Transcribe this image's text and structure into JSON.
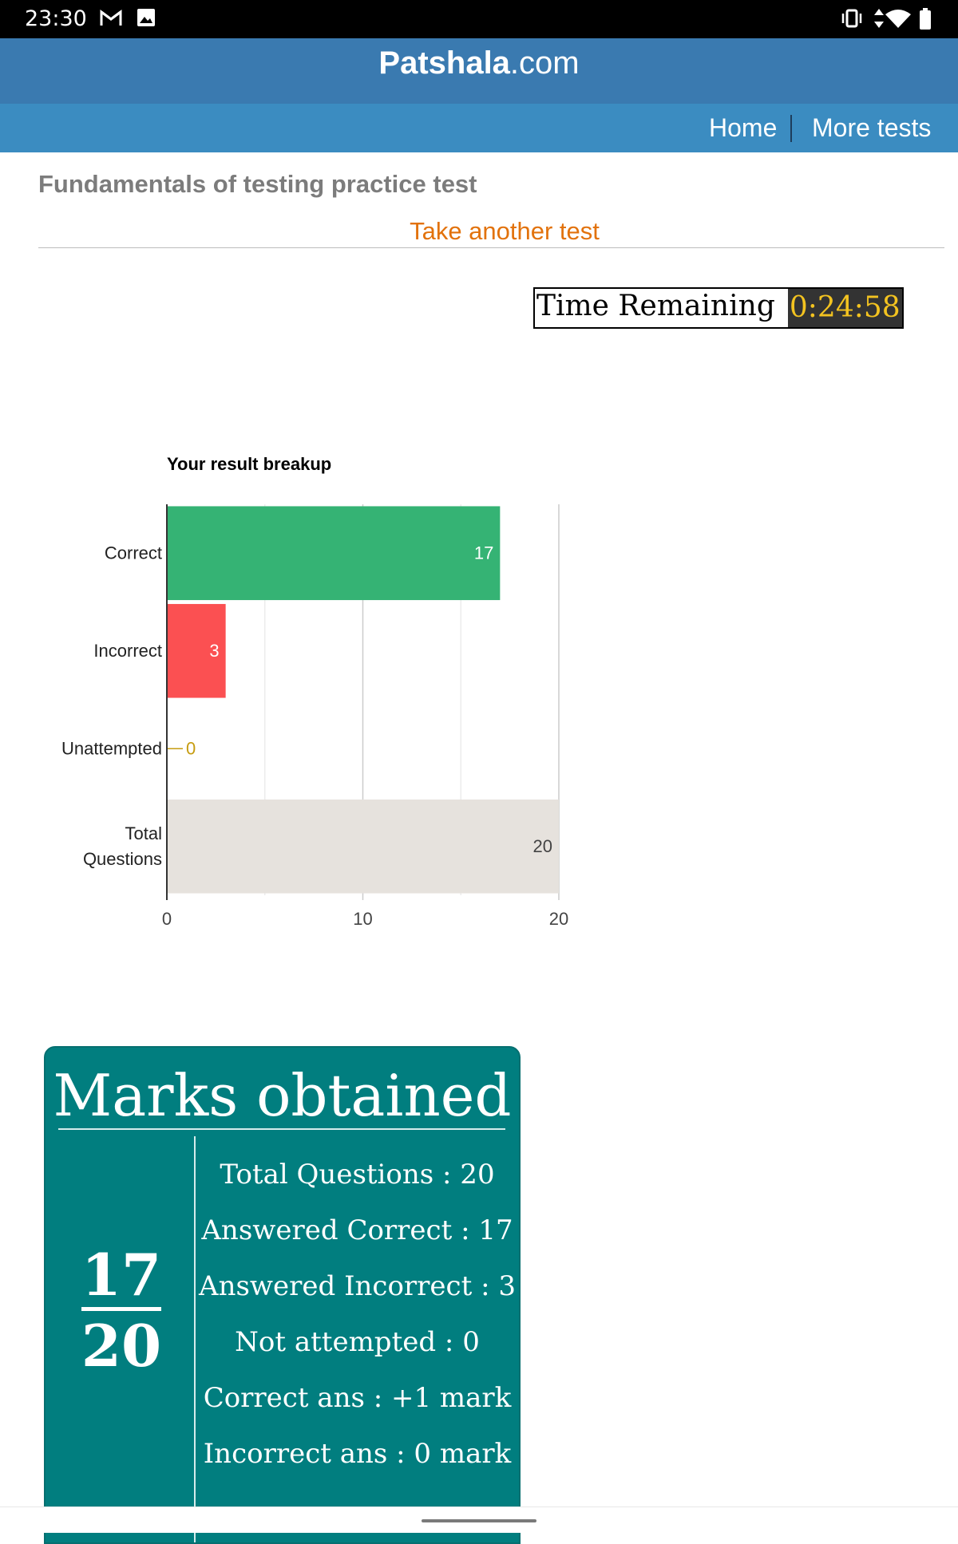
{
  "status_bar": {
    "time": "23:30",
    "icons": [
      "gmail-icon",
      "image-icon",
      "vibrate-icon",
      "data-arrows-icon",
      "wifi-icon",
      "battery-icon"
    ]
  },
  "header": {
    "brand_bold": "Patshala",
    "brand_rest": ".com",
    "bg_color": "#3a7ab0"
  },
  "nav": {
    "home": "Home",
    "more_tests": "More tests",
    "bg_color": "#3b8cc1"
  },
  "page": {
    "title": "Fundamentals of testing practice test",
    "take_another": "Take another test"
  },
  "timer": {
    "label": "Time Remaining",
    "value": "0:24:58"
  },
  "chart_data": {
    "type": "bar",
    "orientation": "horizontal",
    "title": "Your result breakup",
    "categories": [
      "Correct",
      "Incorrect",
      "Unattempted",
      "Total Questions"
    ],
    "values": [
      17,
      3,
      0,
      20
    ],
    "colors": [
      "#35b374",
      "#fb5052",
      "#c69c10",
      "#e6e2dd"
    ],
    "label_colors": [
      "#ffffff",
      "#ffffff",
      "#c69c10",
      "#444444"
    ],
    "xlim": [
      0,
      20
    ],
    "xticks": [
      0,
      10,
      20
    ],
    "grid": true,
    "legend": "none"
  },
  "marks": {
    "heading": "Marks obtained",
    "score": "17",
    "total": "20",
    "stats": [
      "Total Questions : 20",
      "Answered Correct : 17",
      "Answered Incorrect : 3",
      "Not attempted : 0",
      "Correct ans : +1 mark",
      "Incorrect ans : 0 mark"
    ],
    "bg_color": "#017e7f"
  }
}
